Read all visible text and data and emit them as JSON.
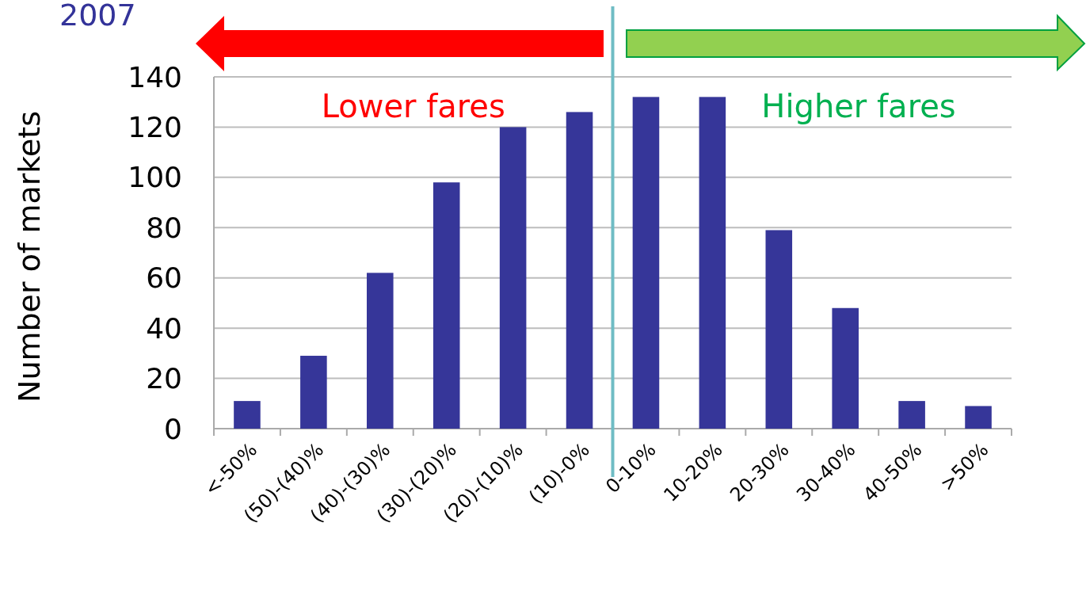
{
  "chart_data": {
    "type": "bar",
    "title": "2007",
    "ylabel": "Number of markets",
    "categories": [
      "<-50%",
      "(50)-(40)%",
      "(40)-(30)%",
      "(30)-(20)%",
      "(20)-(10)%",
      "(10)-0%",
      "0-10%",
      "10-20%",
      "20-30%",
      "30-40%",
      "40-50%",
      ">50%"
    ],
    "values": [
      11,
      29,
      62,
      98,
      120,
      126,
      132,
      132,
      79,
      48,
      11,
      9
    ],
    "color": "#363699",
    "ylim": [
      0,
      140
    ],
    "yticks": [
      0,
      20,
      40,
      60,
      80,
      100,
      120,
      140
    ],
    "grid": "y",
    "ref_lines": [
      {
        "axis": "x",
        "value": "0-10%",
        "color": "#6fbcc4"
      }
    ],
    "annotations": [
      "Lower fares",
      "Higher fares"
    ]
  }
}
